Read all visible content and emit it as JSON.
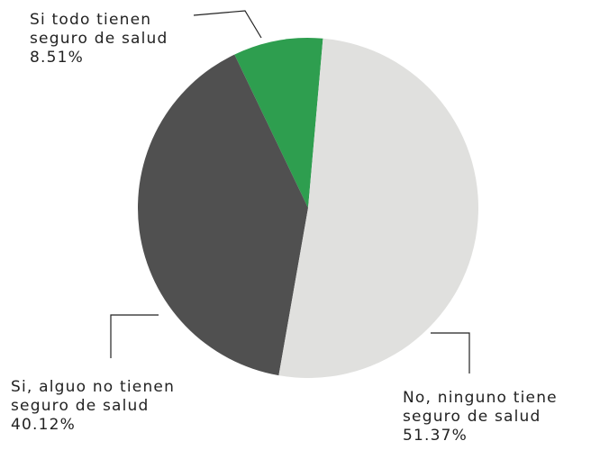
{
  "chart_data": {
    "type": "pie",
    "categories": [
      "No, ninguno tiene seguro de salud",
      "Si, alguo no tienen seguro de salud",
      "Si todo tienen seguro de salud"
    ],
    "values": [
      51.37,
      40.12,
      8.51
    ],
    "value_labels": [
      "51.37%",
      "40.12%",
      "8.51%"
    ],
    "colors": [
      "#e0e0de",
      "#505050",
      "#2e9e4f"
    ]
  }
}
